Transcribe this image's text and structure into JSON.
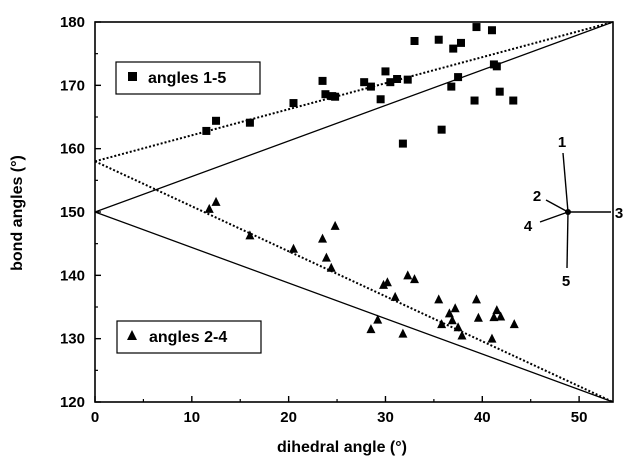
{
  "chart_data": {
    "type": "scatter",
    "xlabel": "dihedral angle (°)",
    "ylabel": "bond angles (°)",
    "xlim": [
      0,
      53.5
    ],
    "ylim": [
      120,
      180
    ],
    "xticks": [
      0,
      10,
      20,
      30,
      40,
      50
    ],
    "yticks": [
      120,
      130,
      140,
      150,
      160,
      170,
      180
    ],
    "xtick_labels": [
      "0",
      "10",
      "20",
      "30",
      "40",
      "50"
    ],
    "ytick_labels": [
      "120",
      "130",
      "140",
      "150",
      "160",
      "170",
      "180"
    ],
    "grid": false,
    "series": [
      {
        "name": "angles 1-5",
        "marker": "square",
        "points": [
          [
            11.5,
            162.8
          ],
          [
            12.5,
            164.4
          ],
          [
            16,
            164.1
          ],
          [
            20.5,
            167.2
          ],
          [
            23.5,
            170.7
          ],
          [
            23.8,
            168.6
          ],
          [
            24.5,
            168.3
          ],
          [
            24.8,
            168.2
          ],
          [
            27.8,
            170.5
          ],
          [
            28.5,
            169.8
          ],
          [
            29.5,
            167.8
          ],
          [
            30,
            172.2
          ],
          [
            30.5,
            170.5
          ],
          [
            31.2,
            171.0
          ],
          [
            31.8,
            160.8
          ],
          [
            32.3,
            170.9
          ],
          [
            33,
            177.0
          ],
          [
            35.5,
            177.2
          ],
          [
            35.8,
            163.0
          ],
          [
            36.8,
            169.8
          ],
          [
            37,
            175.8
          ],
          [
            37.5,
            171.3
          ],
          [
            37.8,
            176.7
          ],
          [
            39.2,
            167.6
          ],
          [
            39.4,
            179.2
          ],
          [
            41,
            178.7
          ],
          [
            41.2,
            173.3
          ],
          [
            41.5,
            173.0
          ],
          [
            41.8,
            169.0
          ],
          [
            43.2,
            167.6
          ]
        ]
      },
      {
        "name": "angles 2-4",
        "marker": "triangle",
        "points": [
          [
            11.8,
            150.5
          ],
          [
            12.5,
            151.6
          ],
          [
            16,
            146.3
          ],
          [
            20.5,
            144.2
          ],
          [
            23.5,
            145.8
          ],
          [
            23.9,
            142.8
          ],
          [
            24.4,
            141.2
          ],
          [
            24.8,
            147.8
          ],
          [
            28.5,
            131.5
          ],
          [
            29.2,
            133.0
          ],
          [
            29.8,
            138.5
          ],
          [
            30.2,
            138.9
          ],
          [
            31,
            136.6
          ],
          [
            31.8,
            130.8
          ],
          [
            32.3,
            140.0
          ],
          [
            33,
            139.4
          ],
          [
            35.5,
            136.2
          ],
          [
            35.8,
            132.3
          ],
          [
            36.6,
            134.0
          ],
          [
            36.9,
            132.9
          ],
          [
            37.2,
            134.8
          ],
          [
            37.5,
            131.8
          ],
          [
            37.9,
            130.5
          ],
          [
            39.4,
            136.2
          ],
          [
            39.6,
            133.3
          ],
          [
            41,
            130.0
          ],
          [
            41.2,
            133.4
          ],
          [
            41.5,
            134.5
          ],
          [
            41.9,
            133.5
          ],
          [
            43.3,
            132.3
          ]
        ]
      }
    ],
    "lines": [
      {
        "style": "solid",
        "from": [
          0,
          150
        ],
        "to": [
          53.5,
          180
        ]
      },
      {
        "style": "solid",
        "from": [
          0,
          150
        ],
        "to": [
          53.5,
          120
        ]
      },
      {
        "style": "dotted",
        "from": [
          0,
          158
        ],
        "to": [
          53.5,
          180
        ]
      },
      {
        "style": "dotted",
        "from": [
          0,
          158
        ],
        "to": [
          53.5,
          120
        ]
      }
    ],
    "legend": [
      {
        "label": "angles 1-5",
        "marker": "square",
        "placement": "upper-left"
      },
      {
        "label": "angles 2-4",
        "marker": "triangle",
        "placement": "lower-left"
      }
    ],
    "inset_labels": [
      "1",
      "2",
      "3",
      "4",
      "5"
    ]
  }
}
